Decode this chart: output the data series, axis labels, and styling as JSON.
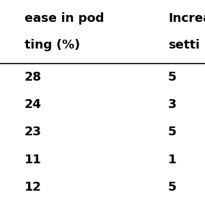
{
  "col1_header_line1": "ease in pod",
  "col1_header_line2": "ting (%)",
  "col2_header_line1": "Increas",
  "col2_header_line2": "setti",
  "col1_values": [
    "28",
    "24",
    "23",
    "11",
    "12"
  ],
  "col2_values": [
    "5",
    "3",
    "5",
    "1",
    "5"
  ],
  "bg_color": "#ffffff",
  "text_color": "#000000",
  "header_color": "#000000",
  "font_size": 13,
  "header_font_size": 13
}
